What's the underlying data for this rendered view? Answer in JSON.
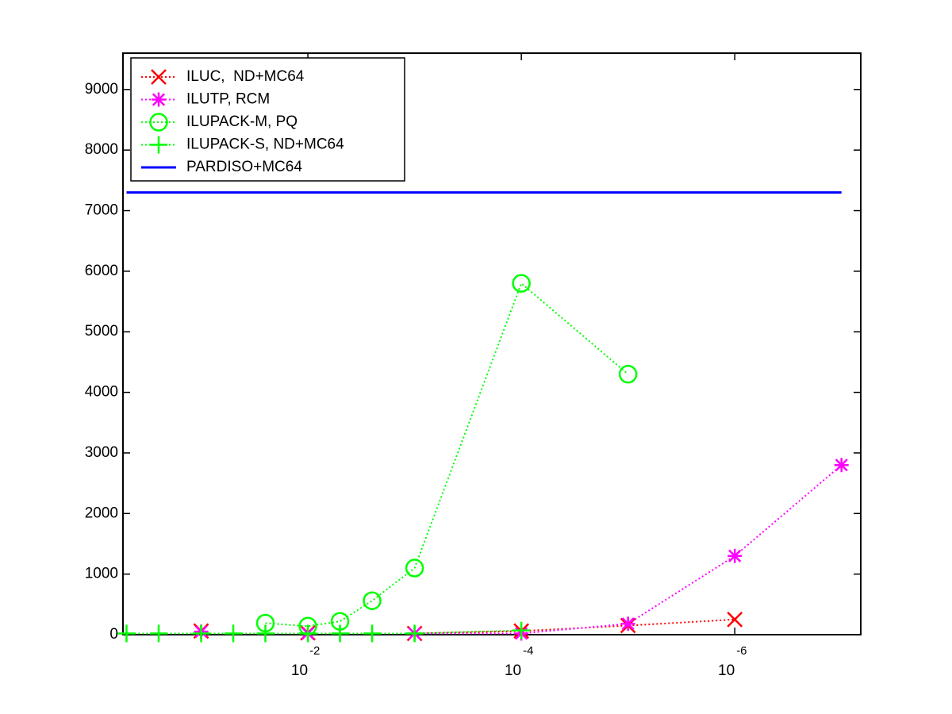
{
  "chart_data": {
    "type": "line",
    "x": [
      0.5,
      0.25,
      0.1,
      0.05,
      0.025,
      0.01,
      0.005,
      0.0025,
      0.001,
      0.0001,
      1e-05,
      1e-06,
      1e-07
    ],
    "xscale": "log",
    "xlim": [
      0.54,
      6.6e-08
    ],
    "xticks": [
      {
        "value": 0.01,
        "label": "10",
        "label_exponent": "-2"
      },
      {
        "value": 0.0001,
        "label": "10",
        "label_exponent": "-4"
      },
      {
        "value": 1e-06,
        "label": "10",
        "label_exponent": "-6"
      }
    ],
    "ylim": [
      0,
      9600
    ],
    "yticks": [
      0,
      1000,
      2000,
      3000,
      4000,
      5000,
      6000,
      7000,
      8000,
      9000
    ],
    "legend": "top-left",
    "series": [
      {
        "name": "ILUC,  ND+MC64",
        "color": "#ff0000",
        "marker": "x",
        "linestyle": "dotted",
        "values": [
          null,
          null,
          60,
          null,
          null,
          30,
          null,
          null,
          20,
          60,
          150,
          250,
          null
        ]
      },
      {
        "name": "ILUTP, RCM",
        "color": "#ff00ff",
        "marker": "*",
        "linestyle": "dotted",
        "values": [
          null,
          null,
          50,
          null,
          null,
          20,
          null,
          null,
          20,
          20,
          180,
          1300,
          2800
        ]
      },
      {
        "name": "ILUPACK-M, PQ",
        "color": "#00ff00",
        "marker": "o",
        "linestyle": "dotted",
        "values": [
          null,
          null,
          null,
          null,
          190,
          140,
          220,
          560,
          1100,
          5800,
          4300,
          null,
          null
        ]
      },
      {
        "name": "ILUPACK-S, ND+MC64",
        "color": "#00ff00",
        "marker": "+",
        "linestyle": "dotted",
        "values": [
          20,
          20,
          20,
          20,
          20,
          20,
          20,
          20,
          20,
          70,
          null,
          null,
          null
        ]
      },
      {
        "name": "PARDISO+MC64",
        "color": "#0000ff",
        "marker": "none",
        "linestyle": "solid",
        "values": [
          7300,
          7300,
          7300,
          7300,
          7300,
          7300,
          7300,
          7300,
          7300,
          7300,
          7300,
          7300,
          7300
        ]
      }
    ]
  }
}
